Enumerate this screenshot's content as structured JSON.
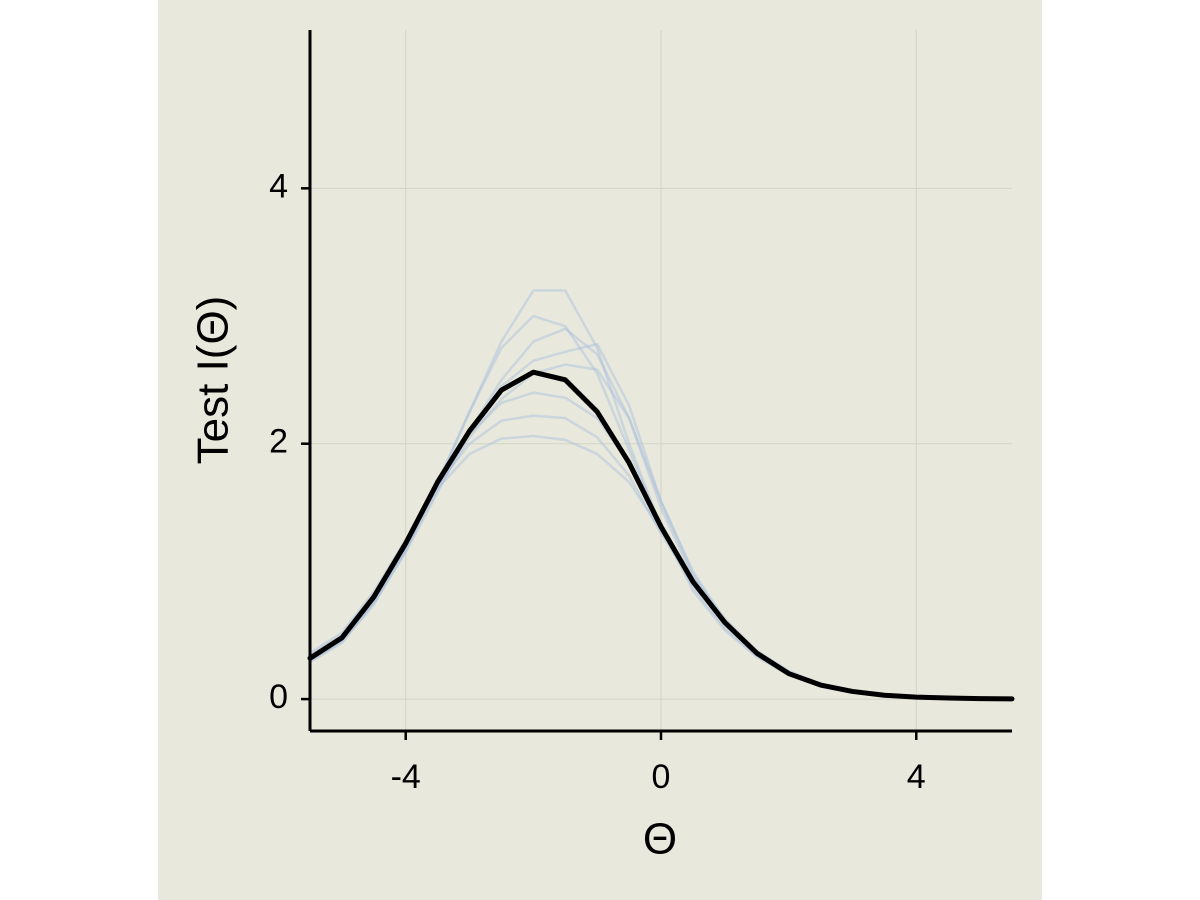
{
  "chart_data": {
    "type": "line",
    "x_label": "Θ",
    "y_label": "Test I(Θ)",
    "x": [
      -5.5,
      -5,
      -4.5,
      -4,
      -3.5,
      -3,
      -2.5,
      -2,
      -1.5,
      -1,
      -0.5,
      0,
      0.5,
      1,
      1.5,
      2,
      2.5,
      3,
      3.5,
      4,
      4.5,
      5,
      5.5
    ],
    "series": [
      {
        "color": "#a9bfdc",
        "values": [
          0.3,
          0.46,
          0.76,
          1.18,
          1.7,
          2.25,
          2.8,
          3.2,
          3.2,
          2.75,
          2.0,
          1.35,
          0.85,
          0.54,
          0.33,
          0.19,
          0.1,
          0.05,
          0.03,
          0.014,
          0.007,
          0.003,
          0.002
        ]
      },
      {
        "color": "#a9bfdc",
        "values": [
          0.36,
          0.52,
          0.84,
          1.25,
          1.65,
          1.92,
          2.04,
          2.06,
          2.03,
          1.92,
          1.7,
          1.32,
          0.95,
          0.63,
          0.38,
          0.22,
          0.12,
          0.06,
          0.03,
          0.016,
          0.008,
          0.004,
          0.002
        ]
      },
      {
        "color": "#a9bfdc",
        "values": [
          0.3,
          0.45,
          0.75,
          1.15,
          1.62,
          2.1,
          2.5,
          2.8,
          2.9,
          2.7,
          2.2,
          1.5,
          0.95,
          0.6,
          0.36,
          0.2,
          0.11,
          0.06,
          0.03,
          0.015,
          0.008,
          0.004,
          0.002
        ]
      },
      {
        "color": "#a9bfdc",
        "values": [
          0.33,
          0.49,
          0.8,
          1.2,
          1.68,
          2.1,
          2.45,
          2.65,
          2.72,
          2.78,
          2.3,
          1.55,
          0.98,
          0.6,
          0.36,
          0.2,
          0.11,
          0.06,
          0.03,
          0.015,
          0.008,
          0.004,
          0.002
        ]
      },
      {
        "color": "#a9bfdc",
        "values": [
          0.34,
          0.5,
          0.82,
          1.22,
          1.68,
          2.0,
          2.18,
          2.22,
          2.2,
          2.05,
          1.75,
          1.3,
          0.9,
          0.6,
          0.37,
          0.21,
          0.11,
          0.06,
          0.03,
          0.015,
          0.008,
          0.004,
          0.002
        ]
      },
      {
        "color": "#a9bfdc",
        "values": [
          0.31,
          0.47,
          0.78,
          1.2,
          1.7,
          2.08,
          2.32,
          2.4,
          2.36,
          2.2,
          1.85,
          1.38,
          0.92,
          0.6,
          0.36,
          0.2,
          0.11,
          0.06,
          0.03,
          0.015,
          0.008,
          0.004,
          0.002
        ]
      },
      {
        "color": "#a9bfdc",
        "values": [
          0.29,
          0.44,
          0.74,
          1.16,
          1.68,
          2.25,
          2.75,
          3.0,
          2.92,
          2.55,
          1.95,
          1.35,
          0.88,
          0.56,
          0.34,
          0.19,
          0.1,
          0.05,
          0.03,
          0.014,
          0.007,
          0.003,
          0.002
        ]
      },
      {
        "color": "#a9bfdc",
        "values": [
          0.32,
          0.47,
          0.78,
          1.18,
          1.64,
          2.05,
          2.35,
          2.55,
          2.62,
          2.58,
          2.2,
          1.55,
          1.0,
          0.62,
          0.37,
          0.21,
          0.11,
          0.06,
          0.03,
          0.015,
          0.008,
          0.004,
          0.002
        ]
      },
      {
        "color": "#000000",
        "values": [
          0.32,
          0.48,
          0.8,
          1.22,
          1.7,
          2.1,
          2.42,
          2.56,
          2.5,
          2.25,
          1.85,
          1.35,
          0.92,
          0.6,
          0.36,
          0.2,
          0.11,
          0.06,
          0.03,
          0.015,
          0.008,
          0.004,
          0.002
        ]
      }
    ],
    "xlim": [
      -5.5,
      5.5
    ],
    "xticks": [
      -4,
      0,
      4
    ],
    "ylim": [
      -0.25,
      5.24
    ],
    "yticks": [
      0,
      2,
      4
    ],
    "grid": true
  }
}
